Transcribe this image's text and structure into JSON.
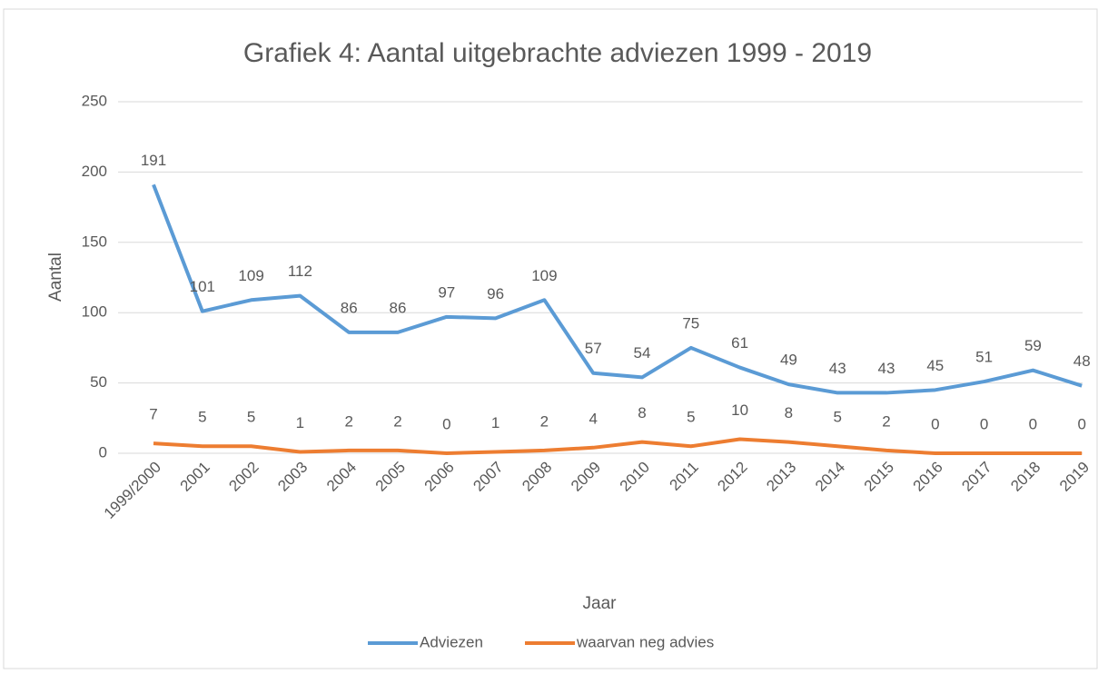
{
  "chart_data": {
    "type": "line",
    "title": "Grafiek 4: Aantal uitgebrachte adviezen 1999 - 2019",
    "x_label": "Jaar",
    "y_label": "Aantal",
    "categories": [
      "1999/2000",
      "2001",
      "2002",
      "2003",
      "2004",
      "2005",
      "2006",
      "2007",
      "2008",
      "2009",
      "2010",
      "2011",
      "2012",
      "2013",
      "2014",
      "2015",
      "2016",
      "2017",
      "2018",
      "2019"
    ],
    "series": [
      {
        "name": "Adviezen",
        "color": "#5b9bd5",
        "values": [
          191,
          101,
          109,
          112,
          86,
          86,
          97,
          96,
          109,
          57,
          54,
          75,
          61,
          49,
          43,
          43,
          45,
          51,
          59,
          48
        ]
      },
      {
        "name": "waarvan neg advies",
        "color": "#ed7d31",
        "values": [
          7,
          5,
          5,
          1,
          2,
          2,
          0,
          1,
          2,
          4,
          8,
          5,
          10,
          8,
          5,
          2,
          0,
          0,
          0,
          0
        ]
      }
    ],
    "ylim": [
      0,
      250
    ],
    "yticks": [
      0,
      50,
      100,
      150,
      200,
      250
    ],
    "grid": true,
    "legend": "bottom"
  }
}
